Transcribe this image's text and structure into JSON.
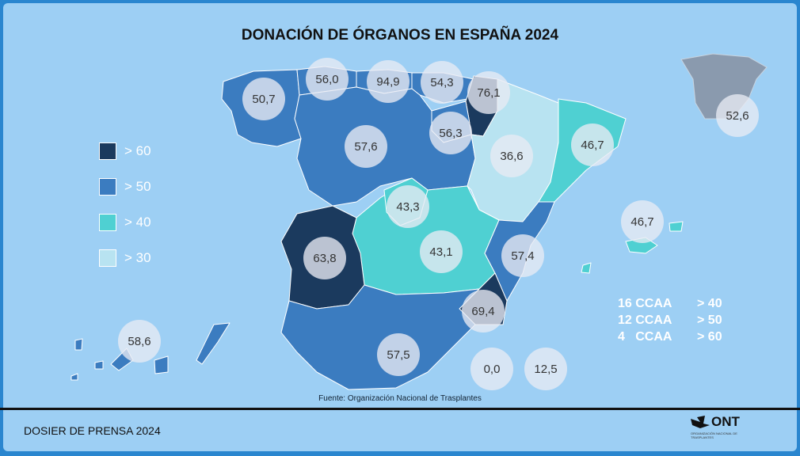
{
  "title": "DONACIÓN DE ÓRGANOS EN ESPAÑA 2024",
  "legend": [
    {
      "label": "> 60",
      "color": "#1b3a5e"
    },
    {
      "label": "> 50",
      "color": "#3b7cc0"
    },
    {
      "label": "> 40",
      "color": "#4fd0d2"
    },
    {
      "label": "> 30",
      "color": "#b8e3f1"
    }
  ],
  "regions": [
    {
      "name": "Galicia",
      "value": "50,7",
      "class": "> 50"
    },
    {
      "name": "Asturias",
      "value": "56,0",
      "class": "> 50"
    },
    {
      "name": "Cantabria",
      "value": "94,9",
      "class": "> 60"
    },
    {
      "name": "País Vasco",
      "value": "54,3",
      "class": "> 50"
    },
    {
      "name": "Navarra",
      "value": "76,1",
      "class": "> 60"
    },
    {
      "name": "La Rioja",
      "value": "56,3",
      "class": "> 50"
    },
    {
      "name": "Castilla y León",
      "value": "57,6",
      "class": "> 50"
    },
    {
      "name": "Aragón",
      "value": "36,6",
      "class": "> 30"
    },
    {
      "name": "Cataluña",
      "value": "46,7",
      "class": "> 40"
    },
    {
      "name": "Madrid",
      "value": "43,3",
      "class": "> 40"
    },
    {
      "name": "Castilla-La Mancha",
      "value": "43,1",
      "class": "> 40"
    },
    {
      "name": "Extremadura",
      "value": "63,8",
      "class": "> 60"
    },
    {
      "name": "Comunidad Valenciana",
      "value": "57,4",
      "class": "> 50"
    },
    {
      "name": "Murcia",
      "value": "69,4",
      "class": "> 60"
    },
    {
      "name": "Andalucía",
      "value": "57,5",
      "class": "> 50"
    },
    {
      "name": "Baleares",
      "value": "46,7",
      "class": "> 40"
    },
    {
      "name": "Canarias",
      "value": "58,6",
      "class": "> 50"
    },
    {
      "name": "Ceuta",
      "value": "0,0"
    },
    {
      "name": "Melilla",
      "value": "12,5"
    },
    {
      "name": "España",
      "value": "52,6"
    }
  ],
  "stats": [
    {
      "count": "16 CCAA",
      "threshold": "> 40"
    },
    {
      "count": "12 CCAA",
      "threshold": "> 50"
    },
    {
      "count": "4   CCAA",
      "threshold": "> 60"
    }
  ],
  "source": "Fuente: Organización Nacional de Trasplantes",
  "footer": "DOSIER DE PRENSA 2024",
  "logo": {
    "text": "ONT",
    "subtitle": "ORGANIZACIÓN NACIONAL DE TRASPLANTES"
  }
}
